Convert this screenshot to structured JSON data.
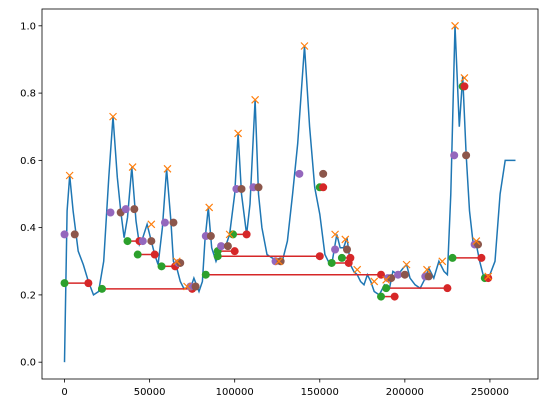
{
  "chart_data": {
    "type": "line",
    "color": "#1f77b4",
    "x": [
      0,
      1500,
      3000,
      5000,
      8000,
      11000,
      14000,
      17000,
      20000,
      23000,
      26000,
      28500,
      31000,
      33000,
      35000,
      37000,
      39500,
      42000,
      44000,
      46000,
      48500,
      51000,
      53000,
      55000,
      57500,
      60000,
      62500,
      64000,
      66000,
      68000,
      70000,
      72000,
      74000,
      76000,
      79000,
      81000,
      82500,
      84500,
      86500,
      89000,
      92000,
      95000,
      97000,
      100000,
      102000,
      104000,
      107000,
      109000,
      112000,
      114000,
      116000,
      119000,
      122000,
      125000,
      128000,
      131000,
      134000,
      137000,
      141000,
      144000,
      147000,
      150000,
      153000,
      155000,
      157000,
      160000,
      162000,
      164000,
      166000,
      168000,
      170000,
      172000,
      174000,
      176000,
      178000,
      180000,
      182000,
      185000,
      188000,
      191000,
      193000,
      196000,
      199000,
      201000,
      203000,
      206000,
      209000,
      212000,
      214000,
      217000,
      220000,
      223000,
      225000,
      227000,
      229500,
      232000,
      234000,
      236000,
      238000,
      240000,
      242000,
      244000,
      246000,
      248000,
      250000,
      253000,
      256000,
      259000,
      262000,
      265000
    ],
    "values": [
      0,
      0.45,
      0.555,
      0.45,
      0.33,
      0.29,
      0.24,
      0.2,
      0.21,
      0.3,
      0.55,
      0.73,
      0.55,
      0.45,
      0.37,
      0.43,
      0.58,
      0.42,
      0.35,
      0.37,
      0.41,
      0.36,
      0.32,
      0.29,
      0.4,
      0.575,
      0.42,
      0.3,
      0.28,
      0.24,
      0.22,
      0.22,
      0.22,
      0.25,
      0.21,
      0.24,
      0.36,
      0.46,
      0.34,
      0.3,
      0.34,
      0.35,
      0.38,
      0.5,
      0.68,
      0.5,
      0.38,
      0.47,
      0.78,
      0.5,
      0.4,
      0.32,
      0.31,
      0.3,
      0.3,
      0.36,
      0.5,
      0.65,
      0.94,
      0.7,
      0.52,
      0.44,
      0.32,
      0.3,
      0.29,
      0.38,
      0.34,
      0.34,
      0.37,
      0.29,
      0.27,
      0.26,
      0.24,
      0.23,
      0.26,
      0.24,
      0.21,
      0.2,
      0.23,
      0.22,
      0.27,
      0.26,
      0.28,
      0.29,
      0.25,
      0.23,
      0.22,
      0.25,
      0.28,
      0.25,
      0.3,
      0.27,
      0.26,
      0.5,
      1.0,
      0.7,
      0.85,
      0.62,
      0.45,
      0.36,
      0.35,
      0.3,
      0.26,
      0.25,
      0.26,
      0.3,
      0.5,
      0.6,
      0.6,
      0.6
    ],
    "peaks": {
      "color": "#ff7f0e",
      "x": [
        3000,
        28500,
        40000,
        51000,
        60500,
        66000,
        72000,
        85000,
        97000,
        102000,
        112000,
        126000,
        141000,
        159000,
        165000,
        172000,
        182000,
        189000,
        201000,
        213000,
        222000,
        229500,
        235000,
        242000,
        249000
      ],
      "y": [
        0.555,
        0.73,
        0.58,
        0.41,
        0.575,
        0.3,
        0.225,
        0.46,
        0.38,
        0.68,
        0.78,
        0.3,
        0.94,
        0.38,
        0.365,
        0.275,
        0.24,
        0.245,
        0.29,
        0.275,
        0.3,
        1.0,
        0.845,
        0.36,
        0.255
      ]
    },
    "full_widths": {
      "line_color": "#d62728",
      "left_color": "#2ca02c",
      "right_color": "#d62728",
      "y": [
        0.235,
        0.218,
        0.36,
        0.32,
        0.285,
        0.26,
        0.315,
        0.38,
        0.33,
        0.52,
        0.295,
        0.31,
        0.22,
        0.195,
        0.31,
        0.82,
        0.25
      ],
      "left": [
        0,
        22000,
        37000,
        43000,
        57000,
        83000,
        90000,
        99000,
        90000,
        150000,
        157000,
        163000,
        189000,
        186000,
        228000,
        234000,
        247000
      ],
      "right": [
        14000,
        75000,
        44000,
        53000,
        65000,
        186000,
        150000,
        107000,
        100000,
        152000,
        167000,
        168000,
        225000,
        194000,
        245000,
        235000,
        249000
      ]
    },
    "half_widths": {
      "left_color": "#9467bd",
      "right_color": "#8c564b",
      "y": [
        0.38,
        0.445,
        0.455,
        0.36,
        0.415,
        0.295,
        0.225,
        0.375,
        0.345,
        0.515,
        0.52,
        0.3,
        0.56,
        0.335,
        0.25,
        0.26,
        0.255,
        0.615,
        0.35
      ],
      "left": [
        0,
        27000,
        36000,
        46000,
        59000,
        67000,
        74000,
        83000,
        92000,
        101000,
        111000,
        124000,
        138000,
        159000,
        190000,
        196000,
        212000,
        229000,
        241000
      ],
      "right": [
        6000,
        33000,
        41000,
        51000,
        64000,
        68000,
        77000,
        86000,
        96000,
        104000,
        114000,
        127000,
        152000,
        166000,
        192000,
        200000,
        214000,
        236000,
        243000
      ]
    },
    "xlim": [
      -13250,
      278250
    ],
    "ylim": [
      -0.05,
      1.05
    ],
    "xticks": [
      0,
      50000,
      100000,
      150000,
      200000,
      250000
    ],
    "yticks": [
      {
        "value": 0,
        "label": "0.0"
      },
      0.2,
      0.4,
      0.6,
      0.8,
      {
        "value": 1,
        "label": "1.0"
      }
    ]
  }
}
